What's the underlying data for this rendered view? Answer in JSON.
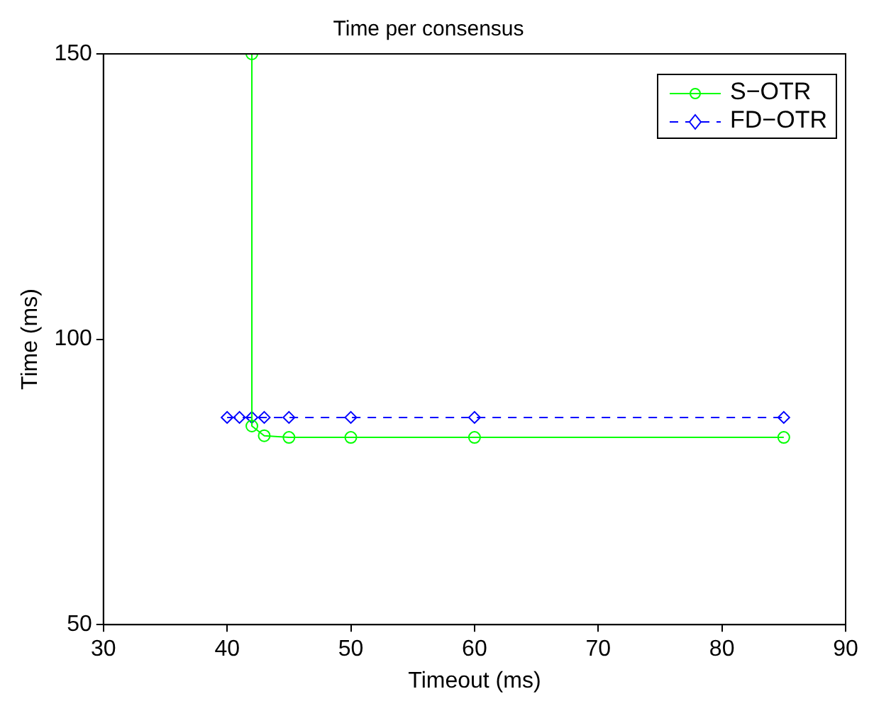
{
  "chart_data": {
    "type": "line",
    "title": "Time per consensus",
    "xlabel": "Timeout (ms)",
    "ylabel": "Time (ms)",
    "xlim": [
      30,
      90
    ],
    "xticks": [
      30,
      40,
      50,
      60,
      70,
      80,
      90
    ],
    "ylim": [
      50,
      150
    ],
    "yticks": [
      50,
      100,
      150
    ],
    "grid": false,
    "legend": "top right",
    "series": [
      {
        "name": "S−OTR",
        "color": "#00ff00",
        "marker": "circle",
        "line_style": "solid",
        "x": [
          42,
          42,
          43,
          45,
          50,
          60,
          85
        ],
        "values": [
          150,
          84.8,
          83.1,
          82.8,
          82.8,
          82.8,
          82.8
        ]
      },
      {
        "name": "FD−OTR",
        "color": "#0000ff",
        "marker": "diamond",
        "line_style": "dashed",
        "x": [
          40,
          41,
          42,
          43,
          45,
          50,
          60,
          85
        ],
        "values": [
          86.3,
          86.3,
          86.3,
          86.3,
          86.3,
          86.3,
          86.3,
          86.3
        ]
      }
    ]
  }
}
